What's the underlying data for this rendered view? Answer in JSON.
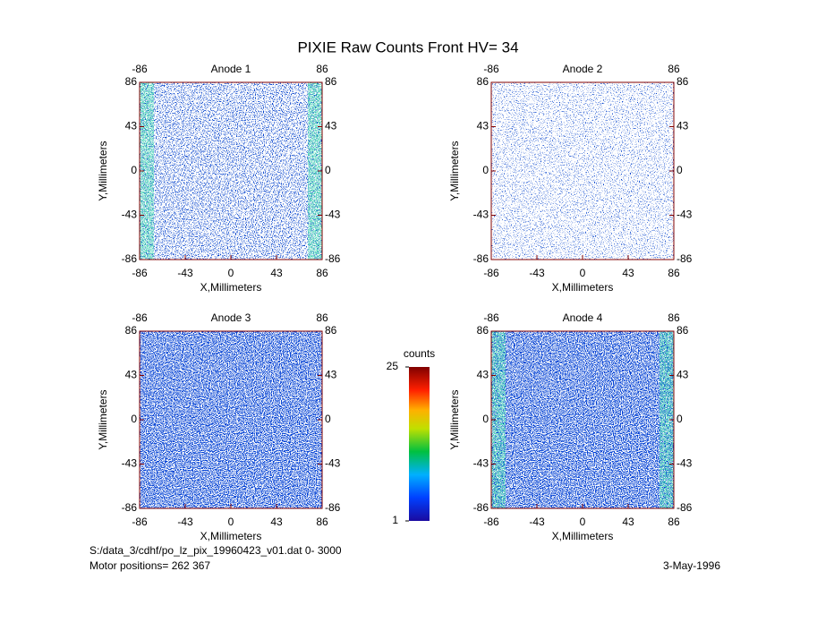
{
  "title": "PIXIE Raw Counts Front HV= 34",
  "chart_data": [
    {
      "type": "heatmap",
      "title": "Anode 1",
      "xlabel": "X,Millimeters",
      "ylabel": "Y,Millimeters",
      "xlim": [
        -86,
        86
      ],
      "ylim": [
        -86,
        86
      ],
      "xticks": [
        -86,
        -43,
        0,
        43,
        86
      ],
      "yticks": [
        -86,
        -43,
        0,
        43,
        86
      ],
      "x2lim": [
        -86,
        86
      ],
      "x2ticks": [
        -86,
        86
      ],
      "y2lim": [
        -86,
        86
      ],
      "y2ticks": [
        -86,
        -43,
        0,
        43,
        86
      ]
    },
    {
      "type": "heatmap",
      "title": "Anode 2",
      "xlabel": "X,Millimeters",
      "ylabel": "Y,Millimeters",
      "xlim": [
        -86,
        86
      ],
      "ylim": [
        -86,
        86
      ],
      "xticks": [
        -86,
        -43,
        0,
        43,
        86
      ],
      "yticks": [
        -86,
        -43,
        0,
        43,
        86
      ],
      "x2lim": [
        -86,
        86
      ],
      "x2ticks": [
        -86,
        86
      ],
      "y2lim": [
        -86,
        86
      ],
      "y2ticks": [
        -86,
        -43,
        0,
        43,
        86
      ]
    },
    {
      "type": "heatmap",
      "title": "Anode 3",
      "xlabel": "X,Millimeters",
      "ylabel": "Y,Millimeters",
      "xlim": [
        -86,
        86
      ],
      "ylim": [
        -86,
        86
      ],
      "xticks": [
        -86,
        -43,
        0,
        43,
        86
      ],
      "yticks": [
        -86,
        -43,
        0,
        43,
        86
      ],
      "x2lim": [
        -86,
        86
      ],
      "x2ticks": [
        -86,
        86
      ],
      "y2lim": [
        -86,
        86
      ],
      "y2ticks": [
        -86,
        -43,
        0,
        43,
        86
      ]
    },
    {
      "type": "heatmap",
      "title": "Anode 4",
      "xlabel": "X,Millimeters",
      "ylabel": "Y,Millimeters",
      "xlim": [
        -86,
        86
      ],
      "ylim": [
        -86,
        86
      ],
      "xticks": [
        -86,
        -43,
        0,
        43,
        86
      ],
      "yticks": [
        -86,
        -43,
        0,
        43,
        86
      ],
      "x2lim": [
        -86,
        86
      ],
      "x2ticks": [
        -86,
        86
      ],
      "y2lim": [
        -86,
        86
      ],
      "y2ticks": [
        -86,
        -43,
        0,
        43,
        86
      ]
    }
  ],
  "colorbar": {
    "label": "counts",
    "lim": [
      1,
      25
    ],
    "ticks": [
      1,
      25
    ]
  },
  "footer": {
    "file": "S:/data_3/cdhf/po_lz_pix_19960423_v01.dat   0- 3000",
    "motor": "Motor positions= 262 367",
    "date": "3-May-1996"
  }
}
